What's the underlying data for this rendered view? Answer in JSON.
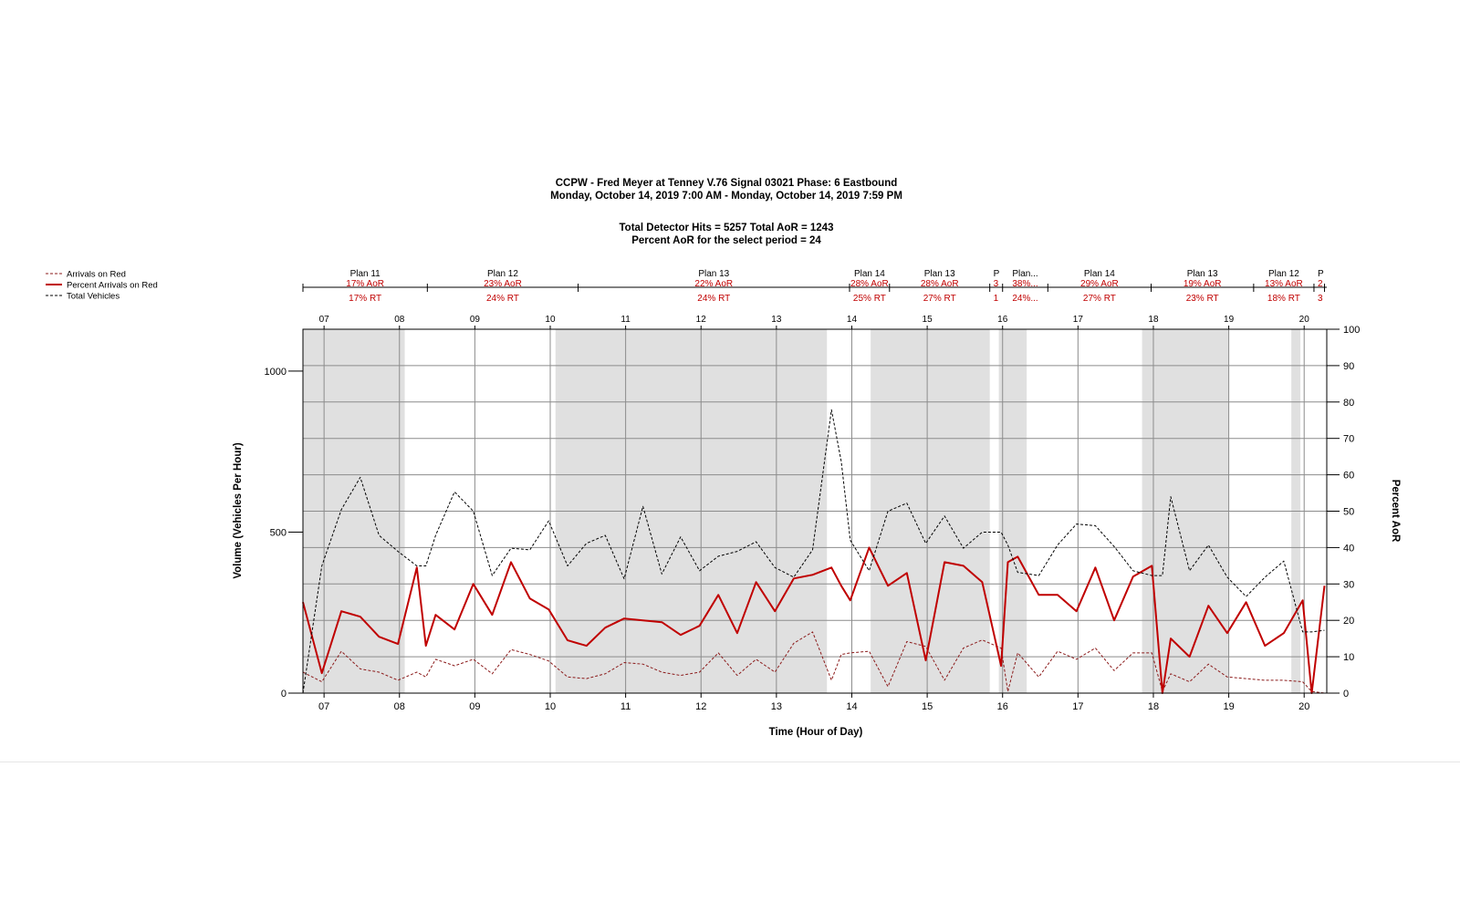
{
  "chart_data": {
    "type": "line",
    "title": "CCPW - Fred Meyer at Tenney V.76  Signal 03021 Phase: 6 Eastbound",
    "subtitle": "Monday, October 14, 2019 7:00 AM - Monday, October 14, 2019 7:59 PM",
    "summary_line1": "Total Detector Hits = 5257 Total AoR = 1243",
    "summary_line2": "Percent AoR for the select period = 24",
    "xlabel": "Time (Hour of Day)",
    "ylabel": "Volume (Vehicles Per Hour)",
    "y2label": "Percent AoR",
    "xlim": [
      6.72,
      20.3
    ],
    "ylim": [
      0,
      1130
    ],
    "y2lim": [
      0,
      100
    ],
    "x_ticks": [
      7,
      8,
      9,
      10,
      11,
      12,
      13,
      14,
      15,
      16,
      17,
      18,
      19,
      20
    ],
    "x_tick_labels": [
      "07",
      "08",
      "09",
      "10",
      "11",
      "12",
      "13",
      "14",
      "15",
      "16",
      "17",
      "18",
      "19",
      "20"
    ],
    "y_ticks": [
      0,
      500,
      1000
    ],
    "y_tick_labels": [
      "0",
      "500",
      "1000"
    ],
    "y2_ticks": [
      0,
      10,
      20,
      30,
      40,
      50,
      60,
      70,
      80,
      90,
      100
    ],
    "y2_tick_labels": [
      "0",
      "10",
      "20",
      "30",
      "40",
      "50",
      "60",
      "70",
      "80",
      "90",
      "100"
    ],
    "grid": true,
    "legend_position": "top-left",
    "plan_bands": [
      [
        6.72,
        8.07
      ],
      [
        10.07,
        13.67
      ],
      [
        14.25,
        15.83
      ],
      [
        15.95,
        16.32
      ],
      [
        17.85,
        19.0
      ],
      [
        19.83,
        19.95
      ]
    ],
    "plans": [
      {
        "start": 6.72,
        "end": 8.37,
        "name": "Plan 11",
        "aor": "17% AoR",
        "rt": "17% RT"
      },
      {
        "start": 8.37,
        "end": 10.37,
        "name": "Plan 12",
        "aor": "23% AoR",
        "rt": "24% RT"
      },
      {
        "start": 10.37,
        "end": 13.97,
        "name": "Plan 13",
        "aor": "22% AoR",
        "rt": "24% RT"
      },
      {
        "start": 13.97,
        "end": 14.5,
        "name": "Plan 14",
        "aor": "28% AoR",
        "rt": "25% RT"
      },
      {
        "start": 14.5,
        "end": 15.83,
        "name": "Plan 13",
        "aor": "28% AoR",
        "rt": "27% RT"
      },
      {
        "start": 15.83,
        "end": 16.0,
        "name": "P",
        "aor": "3",
        "rt": "1"
      },
      {
        "start": 16.0,
        "end": 16.6,
        "name": "Plan...",
        "aor": "38%...",
        "rt": "24%..."
      },
      {
        "start": 16.6,
        "end": 17.97,
        "name": "Plan 14",
        "aor": "29% AoR",
        "rt": "27% RT"
      },
      {
        "start": 17.97,
        "end": 19.33,
        "name": "Plan 13",
        "aor": "19% AoR",
        "rt": "23% RT"
      },
      {
        "start": 19.33,
        "end": 20.13,
        "name": "Plan 12",
        "aor": "13% AoR",
        "rt": "18% RT"
      },
      {
        "start": 20.13,
        "end": 20.27,
        "name": "P",
        "aor": "2",
        "rt": "3"
      }
    ],
    "x": [
      6.72,
      6.97,
      7.23,
      7.48,
      7.73,
      7.98,
      8.23,
      8.35,
      8.48,
      8.73,
      8.98,
      9.23,
      9.48,
      9.73,
      9.98,
      10.23,
      10.48,
      10.73,
      10.98,
      11.23,
      11.48,
      11.73,
      11.98,
      12.23,
      12.48,
      12.73,
      12.98,
      13.23,
      13.48,
      13.73,
      13.86,
      13.98,
      14.23,
      14.48,
      14.73,
      14.98,
      15.23,
      15.48,
      15.73,
      15.98,
      16.07,
      16.2,
      16.48,
      16.73,
      16.98,
      17.23,
      17.48,
      17.73,
      17.98,
      18.12,
      18.23,
      18.48,
      18.73,
      18.98,
      19.23,
      19.48,
      19.73,
      19.98,
      20.1,
      20.27
    ],
    "series": [
      {
        "name": "Arrivals on Red",
        "color": "#8b1a1a",
        "dash": "3,2",
        "axis": "left",
        "values": [
          65,
          35,
          130,
          75,
          65,
          40,
          65,
          50,
          105,
          85,
          105,
          60,
          135,
          120,
          100,
          50,
          45,
          60,
          95,
          90,
          65,
          55,
          65,
          125,
          55,
          105,
          65,
          155,
          190,
          40,
          120,
          125,
          130,
          20,
          160,
          145,
          40,
          140,
          165,
          140,
          5,
          125,
          50,
          130,
          105,
          140,
          70,
          125,
          125,
          5,
          60,
          35,
          90,
          50,
          45,
          40,
          40,
          35,
          5,
          0
        ]
      },
      {
        "name": "Percent Arrivals on Red",
        "color": "#c00000",
        "dash": "",
        "axis": "right",
        "values": [
          25,
          5.5,
          22.5,
          21,
          15.5,
          13.5,
          34.5,
          13,
          21.5,
          17.5,
          30,
          21.5,
          36,
          26,
          23,
          14.5,
          13,
          18,
          20.5,
          20,
          19.5,
          16,
          18.5,
          27,
          16.5,
          30.5,
          22.5,
          31.5,
          32.5,
          34.5,
          29.5,
          25.5,
          40,
          29.5,
          33,
          9,
          36,
          35,
          30.5,
          7.5,
          36,
          37.5,
          27,
          27,
          22.5,
          34.5,
          20,
          32,
          35,
          0,
          15,
          10,
          24,
          16.5,
          25,
          13,
          16.5,
          25.5,
          0,
          29.5
        ]
      },
      {
        "name": "Total Vehicles",
        "color": "#000000",
        "dash": "3,2",
        "axis": "left",
        "values": [
          0,
          395,
          570,
          670,
          490,
          440,
          395,
          395,
          490,
          625,
          565,
          365,
          450,
          445,
          535,
          395,
          465,
          490,
          355,
          580,
          370,
          485,
          380,
          425,
          440,
          470,
          390,
          360,
          445,
          880,
          720,
          475,
          380,
          565,
          590,
          465,
          550,
          450,
          500,
          500,
          460,
          375,
          365,
          460,
          525,
          520,
          455,
          380,
          365,
          365,
          610,
          380,
          460,
          360,
          300,
          360,
          410,
          190,
          190,
          195
        ]
      }
    ]
  },
  "legend": {
    "items": [
      {
        "label": "Arrivals on Red",
        "color": "#8b1a1a",
        "dash": "3,2"
      },
      {
        "label": "Percent Arrivals on Red",
        "color": "#c00000",
        "dash": ""
      },
      {
        "label": "Total Vehicles",
        "color": "#000000",
        "dash": "3,2"
      }
    ]
  }
}
